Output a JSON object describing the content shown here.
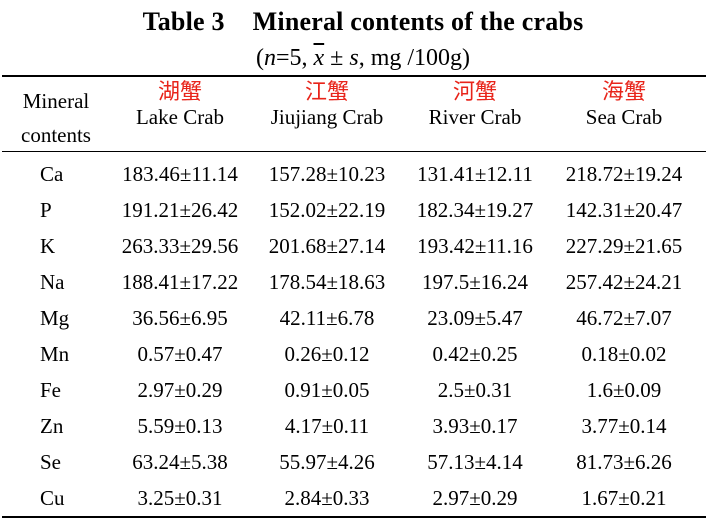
{
  "title": {
    "number": "Table 3",
    "text": "Mineral contents of the crabs"
  },
  "subtitle": {
    "open": "(",
    "n_var": "n",
    "n_eq": "=5, ",
    "xbar": "x",
    "pm_s": " ± ",
    "s_var": "s",
    "unit": ", mg /100g)"
  },
  "header": {
    "mineral_line1": "Mineral",
    "mineral_line2": "contents",
    "columns": [
      {
        "cn": "湖蟹",
        "en": "Lake Crab"
      },
      {
        "cn": "江蟹",
        "en": "Jiujiang Crab"
      },
      {
        "cn": "河蟹",
        "en": "River Crab"
      },
      {
        "cn": "海蟹",
        "en": "Sea Crab"
      }
    ]
  },
  "rows": [
    {
      "element": "Ca",
      "values": [
        "183.46±11.14",
        "157.28±10.23",
        "131.41±12.11",
        "218.72±19.24"
      ]
    },
    {
      "element": "P",
      "values": [
        "191.21±26.42",
        "152.02±22.19",
        "182.34±19.27",
        "142.31±20.47"
      ]
    },
    {
      "element": "K",
      "values": [
        "263.33±29.56",
        "201.68±27.14",
        "193.42±11.16",
        "227.29±21.65"
      ]
    },
    {
      "element": "Na",
      "values": [
        "188.41±17.22",
        "178.54±18.63",
        "197.5±16.24",
        "257.42±24.21"
      ]
    },
    {
      "element": "Mg",
      "values": [
        "36.56±6.95",
        "42.11±6.78",
        "23.09±5.47",
        "46.72±7.07"
      ]
    },
    {
      "element": "Mn",
      "values": [
        "0.57±0.47",
        "0.26±0.12",
        "0.42±0.25",
        "0.18±0.02"
      ]
    },
    {
      "element": "Fe",
      "values": [
        "2.97±0.29",
        "0.91±0.05",
        "2.5±0.31",
        "1.6±0.09"
      ]
    },
    {
      "element": "Zn",
      "values": [
        "5.59±0.13",
        "4.17±0.11",
        "3.93±0.17",
        "3.77±0.14"
      ]
    },
    {
      "element": "Se",
      "values": [
        "63.24±5.38",
        "55.97±4.26",
        "57.13±4.14",
        "81.73±6.26"
      ]
    },
    {
      "element": "Cu",
      "values": [
        "3.25±0.31",
        "2.84±0.33",
        "2.97±0.29",
        "1.67±0.21"
      ]
    }
  ]
}
